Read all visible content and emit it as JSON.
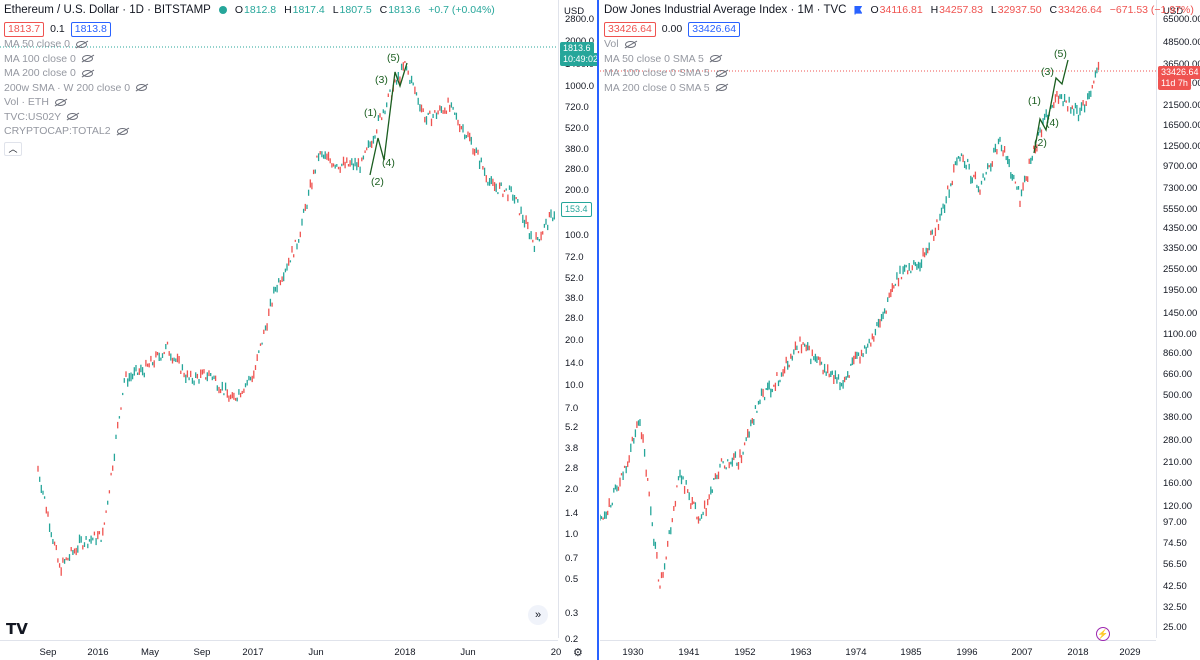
{
  "left": {
    "title": "Ethereum / U.S. Dollar · 1D · BITSTAMP",
    "ohlc": [
      {
        "k": "O",
        "v": "1812.8"
      },
      {
        "k": "H",
        "v": "1817.4"
      },
      {
        "k": "L",
        "v": "1807.5"
      },
      {
        "k": "C",
        "v": "1813.6"
      }
    ],
    "change": "+0.7 (+0.04%)",
    "bid": "1813.7",
    "spread": "0.1",
    "ask": "1813.8",
    "indicators": [
      "MA 50 close 0",
      "MA 100 close 0",
      "MA 200 close 0",
      "200w SMA · W 200 close 0",
      "Vol · ETH",
      "TVC:US02Y",
      "CRYPTOCAP:TOTAL2"
    ],
    "currency": "USD",
    "price_ticks": [
      "2800.0",
      "2000.0",
      "1400.0",
      "1000.0",
      "720.0",
      "520.0",
      "380.0",
      "280.0",
      "200.0",
      "140.0",
      "100.0",
      "72.0",
      "52.0",
      "38.0",
      "28.0",
      "20.0",
      "14.0",
      "10.0",
      "7.0",
      "5.2",
      "3.8",
      "2.8",
      "2.0",
      "1.4",
      "1.0",
      "0.7",
      "0.5",
      "0.3",
      "0.2"
    ],
    "time_ticks": [
      "Sep",
      "2016",
      "May",
      "Sep",
      "2017",
      "Jun",
      "2018",
      "Jun",
      "20"
    ],
    "last_price_tag": "1813.6",
    "last_time_tag": "10:49:02",
    "marker_tag": "153.4",
    "waves": [
      "(1)",
      "(2)",
      "(3)",
      "(4)",
      "(5)"
    ],
    "logo": "TV",
    "scroll_icon": "»",
    "gear_icon": "⚙",
    "chart_data": {
      "type": "line",
      "title": "Ethereum / U.S. Dollar · 1D · BITSTAMP",
      "scale": "log",
      "ylim": [
        0.2,
        2800
      ],
      "x": [
        "2015-08",
        "2015-10",
        "2015-12",
        "2016-02",
        "2016-03",
        "2016-05",
        "2016-06",
        "2016-08",
        "2016-10",
        "2016-12",
        "2017-02",
        "2017-03",
        "2017-05",
        "2017-06",
        "2017-08",
        "2017-10",
        "2017-12",
        "2018-01",
        "2018-03",
        "2018-05",
        "2018-07",
        "2018-09",
        "2018-11",
        "2018-12",
        "2019-01"
      ],
      "series": [
        {
          "values": [
            2.8,
            0.6,
            0.9,
            1.0,
            11.0,
            13.0,
            18.0,
            11.0,
            12.0,
            8.0,
            12.0,
            45.0,
            90.0,
            350.0,
            300.0,
            300.0,
            700.0,
            1400.0,
            600.0,
            750.0,
            450.0,
            220.0,
            190.0,
            90.0,
            150.0
          ]
        }
      ]
    }
  },
  "right": {
    "title": "Dow Jones Industrial Average Index · 1M · TVC",
    "ohlc": [
      {
        "k": "O",
        "v": "34116.81"
      },
      {
        "k": "H",
        "v": "34257.83"
      },
      {
        "k": "L",
        "v": "32937.50"
      },
      {
        "k": "C",
        "v": "33426.64"
      }
    ],
    "change": "−671.53 (−1.97%)",
    "bid": "33426.64",
    "spread": "0.00",
    "ask": "33426.64",
    "indicators": [
      "Vol",
      "MA 50 close 0 SMA 5",
      "MA 100 close 0 SMA 5",
      "MA 200 close 0 SMA 5"
    ],
    "currency": "USD",
    "price_ticks": [
      "65000.00",
      "48500.00",
      "36500.00",
      "28500.00",
      "21500.00",
      "16500.00",
      "12500.00",
      "9700.00",
      "7300.00",
      "5550.00",
      "4350.00",
      "3350.00",
      "2550.00",
      "1950.00",
      "1450.00",
      "1100.00",
      "860.00",
      "660.00",
      "500.00",
      "380.00",
      "280.00",
      "210.00",
      "160.00",
      "120.00",
      "97.00",
      "74.50",
      "56.50",
      "42.50",
      "32.50",
      "25.00"
    ],
    "time_ticks": [
      "1930",
      "1941",
      "1952",
      "1963",
      "1974",
      "1985",
      "1996",
      "2007",
      "2018",
      "2029"
    ],
    "last_price_tag": "33426.64",
    "last_time_tag": "11d 7h",
    "waves": [
      "(1)",
      "(2)",
      "(3)",
      "(4)",
      "(5)"
    ],
    "bolt_icon": "⚡",
    "chart_data": {
      "type": "line",
      "title": "Dow Jones Industrial Average Index · 1M · TVC",
      "scale": "log",
      "ylim": [
        25,
        65000
      ],
      "x": [
        1923,
        1926,
        1929,
        1932,
        1937,
        1942,
        1946,
        1950,
        1955,
        1960,
        1966,
        1970,
        1974,
        1980,
        1985,
        1987,
        1990,
        1995,
        2000,
        2002,
        2007,
        2009,
        2013,
        2018,
        2020,
        2022
      ],
      "series": [
        {
          "values": [
            100,
            160,
            380,
            42,
            190,
            95,
            200,
            220,
            480,
            650,
            990,
            750,
            580,
            850,
            1300,
            2500,
            2800,
            5000,
            11500,
            7300,
            14000,
            6500,
            15500,
            25000,
            19000,
            36000
          ]
        }
      ]
    }
  }
}
